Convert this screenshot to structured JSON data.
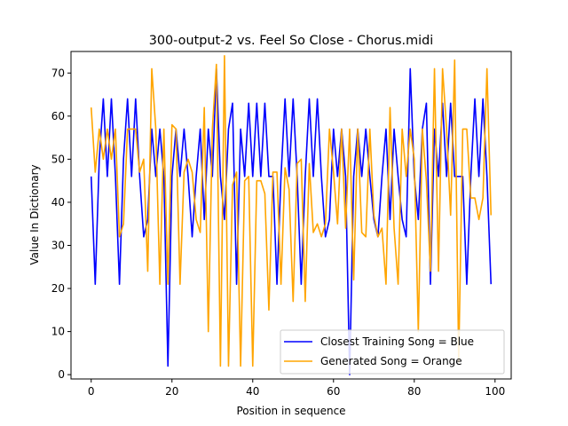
{
  "chart_data": {
    "type": "line",
    "title": "300-output-2 vs. Feel So Close - Chorus.midi",
    "xlabel": "Position in sequence",
    "ylabel": "Value In Dictionary",
    "xlim": [
      -5,
      104
    ],
    "ylim": [
      -1,
      75
    ],
    "xticks": [
      0,
      20,
      40,
      60,
      80,
      100
    ],
    "yticks": [
      0,
      10,
      20,
      30,
      40,
      50,
      60,
      70
    ],
    "grid": false,
    "legend_position": "lower-right",
    "x": [
      0,
      1,
      2,
      3,
      4,
      5,
      6,
      7,
      8,
      9,
      10,
      11,
      12,
      13,
      14,
      15,
      16,
      17,
      18,
      19,
      20,
      21,
      22,
      23,
      24,
      25,
      26,
      27,
      28,
      29,
      30,
      31,
      32,
      33,
      34,
      35,
      36,
      37,
      38,
      39,
      40,
      41,
      42,
      43,
      44,
      45,
      46,
      47,
      48,
      49,
      50,
      51,
      52,
      53,
      54,
      55,
      56,
      57,
      58,
      59,
      60,
      61,
      62,
      63,
      64,
      65,
      66,
      67,
      68,
      69,
      70,
      71,
      72,
      73,
      74,
      75,
      76,
      77,
      78,
      79,
      80,
      81,
      82,
      83,
      84,
      85,
      86,
      87,
      88,
      89,
      90,
      91,
      92,
      93,
      94,
      95,
      96,
      97,
      98,
      99
    ],
    "series": [
      {
        "name": "Closest Training Song = Blue",
        "color": "#0000ff",
        "values": [
          46,
          21,
          50,
          64,
          46,
          64,
          46,
          21,
          50,
          64,
          46,
          64,
          46,
          32,
          36,
          57,
          46,
          57,
          46,
          2,
          46,
          57,
          46,
          57,
          46,
          32,
          46,
          57,
          36,
          57,
          46,
          71,
          46,
          36,
          57,
          63,
          21,
          57,
          46,
          63,
          46,
          63,
          46,
          63,
          46,
          46,
          21,
          46,
          64,
          46,
          64,
          46,
          21,
          46,
          64,
          46,
          64,
          46,
          32,
          36,
          57,
          46,
          57,
          46,
          0,
          46,
          57,
          46,
          57,
          46,
          36,
          32,
          46,
          57,
          36,
          57,
          46,
          36,
          32,
          71,
          46,
          36,
          57,
          63,
          21,
          57,
          46,
          63,
          46,
          63,
          46,
          46,
          46,
          21,
          46,
          64,
          46,
          64,
          46,
          21
        ]
      },
      {
        "name": "Generated Song = Orange",
        "color": "#ffa500",
        "values": [
          62,
          47,
          57,
          50,
          57,
          50,
          57,
          32,
          35,
          57,
          57,
          57,
          47,
          50,
          24,
          71,
          57,
          21,
          57,
          21,
          58,
          57,
          21,
          47,
          50,
          47,
          36,
          33,
          62,
          10,
          57,
          72,
          2,
          74,
          2,
          44,
          47,
          2,
          45,
          46,
          2,
          45,
          45,
          42,
          15,
          47,
          47,
          21,
          48,
          43,
          17,
          49,
          50,
          17,
          49,
          33,
          35,
          32,
          35,
          57,
          47,
          35,
          57,
          34,
          57,
          22,
          57,
          33,
          32,
          57,
          37,
          32,
          34,
          21,
          62,
          34,
          21,
          57,
          46,
          57,
          50,
          10,
          57,
          45,
          24,
          71,
          24,
          71,
          57,
          37,
          73,
          3,
          57,
          57,
          41,
          41,
          36,
          41,
          71,
          37
        ]
      }
    ]
  }
}
